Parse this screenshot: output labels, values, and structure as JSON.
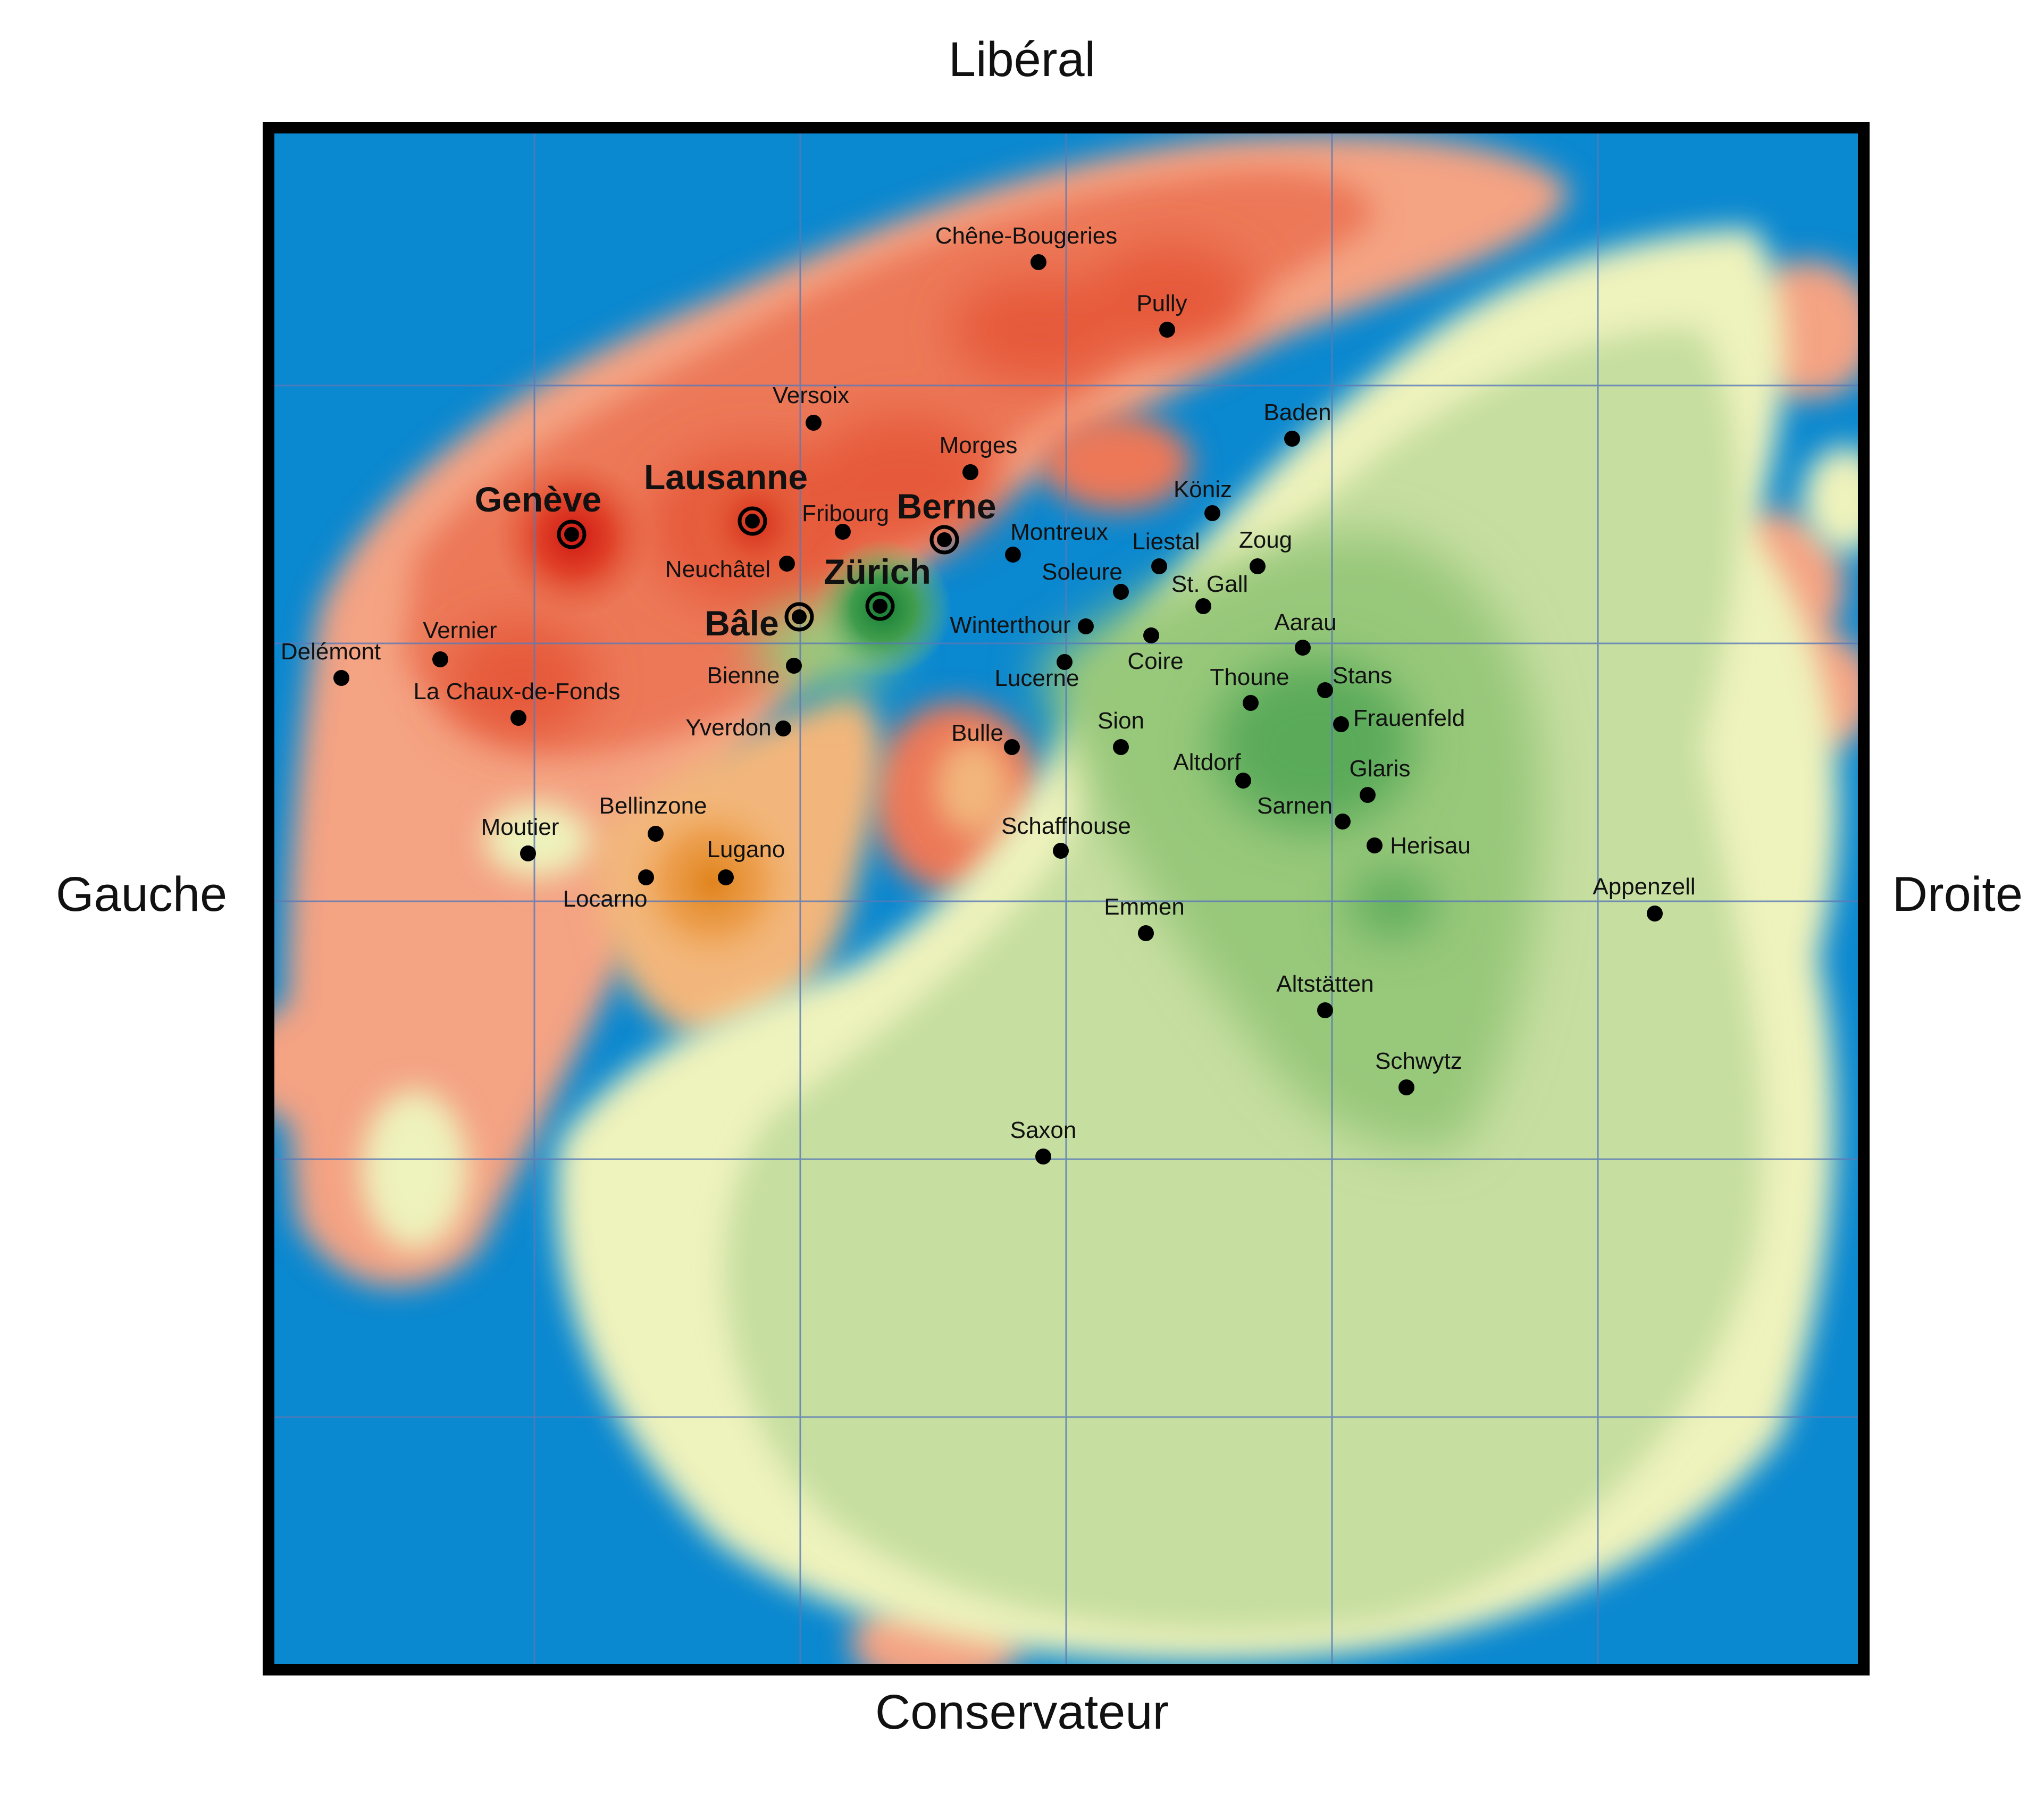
{
  "axes": {
    "top": "Libéral",
    "bottom": "Conservateur",
    "left": "Gauche",
    "right": "Droite"
  },
  "colors": {
    "water": "#0a88d0",
    "frame": "#000000",
    "grid": "#5a7ab8",
    "left_pale": "#f4a585",
    "left_mid": "#ee7a5a",
    "left_strong": "#e45a3c",
    "left_peak": "#d8241c",
    "center_orange": "#f0b070",
    "center_orange_strong": "#e8902e",
    "right_pale": "#eef3bd",
    "right_light": "#c9e0a0",
    "right_mid": "#9ccc7e",
    "right_strong": "#5fae5c",
    "right_peak": "#1e8a3c"
  },
  "cities": [
    {
      "name": "Chêne-Bougeries",
      "major": false
    },
    {
      "name": "Pully",
      "major": false
    },
    {
      "name": "Versoix",
      "major": false
    },
    {
      "name": "Baden",
      "major": false
    },
    {
      "name": "Morges",
      "major": false
    },
    {
      "name": "Lausanne",
      "major": true
    },
    {
      "name": "Genève",
      "major": true
    },
    {
      "name": "Fribourg",
      "major": false
    },
    {
      "name": "Berne",
      "major": true
    },
    {
      "name": "Köniz",
      "major": false
    },
    {
      "name": "Montreux",
      "major": false
    },
    {
      "name": "Liestal",
      "major": false
    },
    {
      "name": "Zoug",
      "major": false
    },
    {
      "name": "Neuchâtel",
      "major": false
    },
    {
      "name": "Zürich",
      "major": true
    },
    {
      "name": "Soleure",
      "major": false
    },
    {
      "name": "St. Gall",
      "major": false
    },
    {
      "name": "Bâle",
      "major": true
    },
    {
      "name": "Winterthour",
      "major": false
    },
    {
      "name": "Aarau",
      "major": false
    },
    {
      "name": "Vernier",
      "major": false
    },
    {
      "name": "Delémont",
      "major": false
    },
    {
      "name": "Coire",
      "major": false
    },
    {
      "name": "Bienne",
      "major": false
    },
    {
      "name": "Lucerne",
      "major": false
    },
    {
      "name": "Thoune",
      "major": false
    },
    {
      "name": "Stans",
      "major": false
    },
    {
      "name": "La Chaux-de-Fonds",
      "major": false
    },
    {
      "name": "Frauenfeld",
      "major": false
    },
    {
      "name": "Yverdon",
      "major": false
    },
    {
      "name": "Bulle",
      "major": false
    },
    {
      "name": "Sion",
      "major": false
    },
    {
      "name": "Altdorf",
      "major": false
    },
    {
      "name": "Glaris",
      "major": false
    },
    {
      "name": "Sarnen",
      "major": false
    },
    {
      "name": "Bellinzone",
      "major": false
    },
    {
      "name": "Moutier",
      "major": false
    },
    {
      "name": "Schaffhouse",
      "major": false
    },
    {
      "name": "Herisau",
      "major": false
    },
    {
      "name": "Lugano",
      "major": false
    },
    {
      "name": "Locarno",
      "major": false
    },
    {
      "name": "Appenzell",
      "major": false
    },
    {
      "name": "Emmen",
      "major": false
    },
    {
      "name": "Altstätten",
      "major": false
    },
    {
      "name": "Schwytz",
      "major": false
    },
    {
      "name": "Saxon",
      "major": false
    }
  ]
}
